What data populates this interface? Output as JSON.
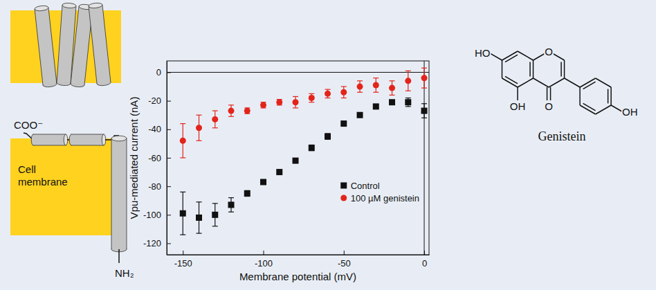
{
  "chart_data": {
    "type": "scatter",
    "x_label": "Membrane potential (mV)",
    "y_label": "Vpu-mediated current (nA)",
    "x": [
      -150,
      -140,
      -130,
      -120,
      -110,
      -100,
      -90,
      -80,
      -70,
      -60,
      -50,
      -40,
      -30,
      -20,
      -10,
      0
    ],
    "xlim": [
      -160,
      3
    ],
    "xticks": [
      -150,
      -100,
      -50,
      0
    ],
    "ylim": [
      -128,
      8
    ],
    "yticks": [
      0,
      -20,
      -40,
      -60,
      -80,
      -100,
      -120
    ],
    "legend": "lower right",
    "series": [
      {
        "name": "Control",
        "color": "#111111",
        "marker": "square",
        "values": [
          -99,
          -102,
          -100,
          -93,
          -85,
          -77,
          -70,
          -62,
          -53,
          -45,
          -36,
          -30,
          -24,
          -21,
          -21,
          -27
        ],
        "errors": [
          15,
          11,
          8,
          5,
          2,
          1,
          1,
          1,
          2,
          2,
          1,
          1,
          1,
          1,
          3,
          5
        ]
      },
      {
        "name": "100 µM genistein",
        "color": "#e3241b",
        "marker": "circle",
        "values": [
          -48,
          -39,
          -33,
          -27,
          -27,
          -23,
          -21,
          -21,
          -18,
          -15,
          -14,
          -10,
          -9,
          -11,
          -6,
          -4
        ],
        "errors": [
          12,
          9,
          6,
          4,
          2,
          2,
          2,
          4,
          3,
          3,
          4,
          4,
          5,
          5,
          7,
          7
        ]
      }
    ]
  },
  "diagram": {
    "c_terminus": "COO⁻",
    "membrane_label": "Cell membrane",
    "n_terminus": "NH₂"
  },
  "molecule": {
    "name": "Genistein",
    "atoms": [
      "HO",
      "O",
      "OH",
      "O",
      "OH"
    ]
  }
}
